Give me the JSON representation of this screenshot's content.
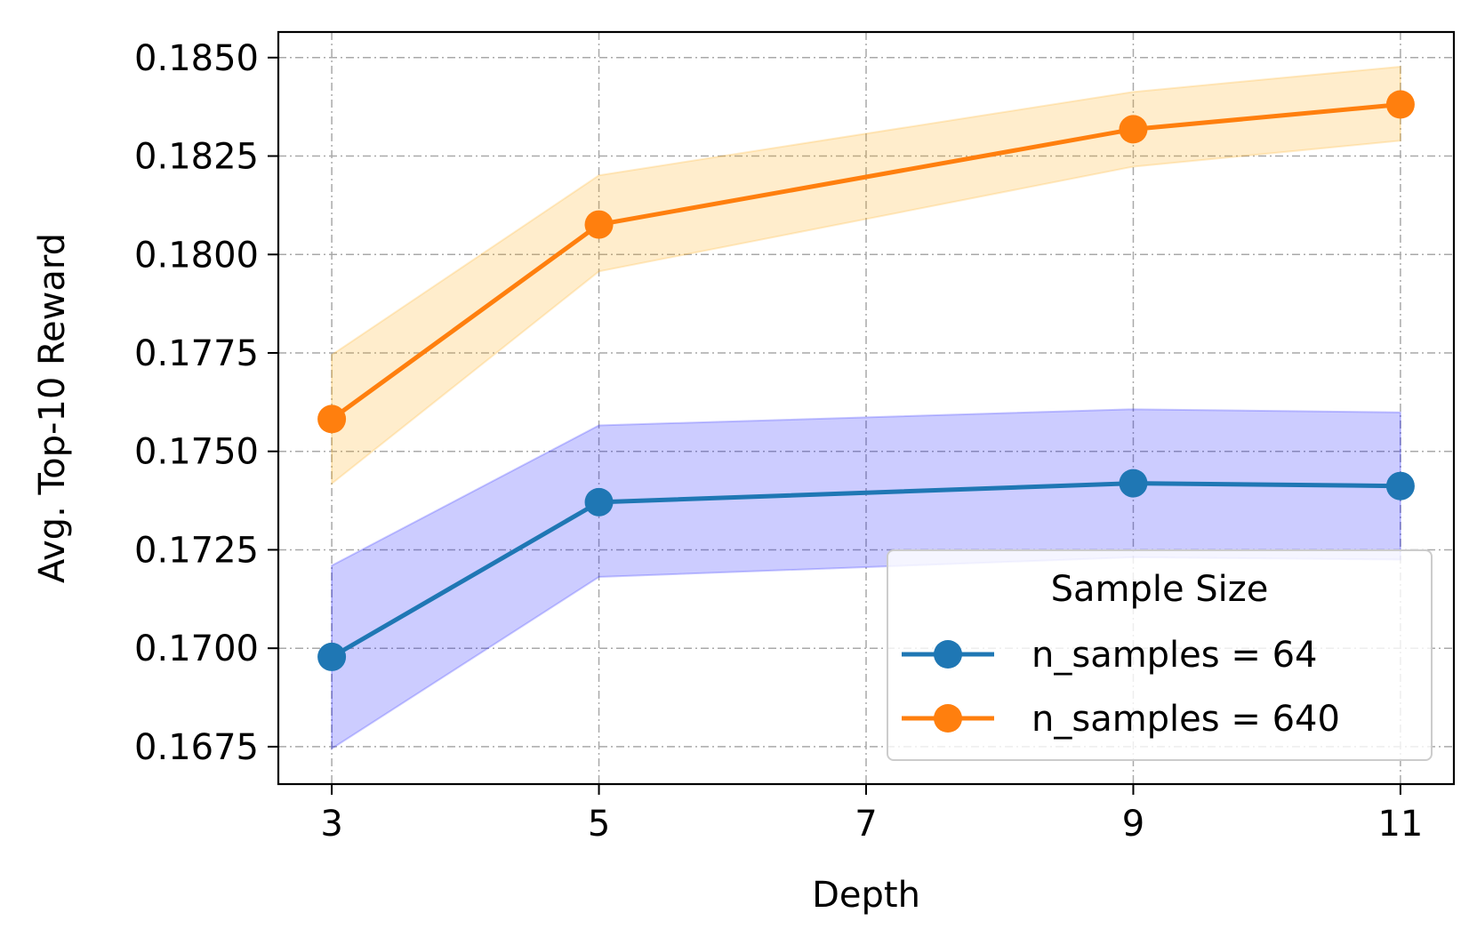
{
  "chart_data": {
    "type": "line",
    "title": "",
    "xlabel": "Depth",
    "ylabel": "Avg. Top-10 Reward",
    "x": [
      3,
      5,
      9,
      11
    ],
    "xticks": [
      "3",
      "5",
      "7",
      "9",
      "11"
    ],
    "xlim": [
      2.6,
      11.4
    ],
    "yticks": [
      "0.1675",
      "0.1700",
      "0.1725",
      "0.1750",
      "0.1775",
      "0.1800",
      "0.1825",
      "0.1850"
    ],
    "ylim": [
      0.16655,
      0.18565
    ],
    "grid": true,
    "legend": {
      "title": "Sample Size",
      "position": "lower-right"
    },
    "series": [
      {
        "name": "n_samples = 64",
        "color": "#1f77b4",
        "band_color": "#0000ff",
        "values": [
          0.16978,
          0.17371,
          0.17419,
          0.17412
        ],
        "lower": [
          0.16745,
          0.17181,
          0.17231,
          0.17225
        ],
        "upper": [
          0.1721,
          0.17566,
          0.17607,
          0.17599
        ]
      },
      {
        "name": "n_samples = 640",
        "color": "#ff7f0e",
        "band_color": "#ffa500",
        "values": [
          0.17582,
          0.18076,
          0.18318,
          0.18381
        ],
        "lower": [
          0.17418,
          0.17957,
          0.18223,
          0.18289
        ],
        "upper": [
          0.17745,
          0.18201,
          0.18413,
          0.18477
        ]
      }
    ]
  }
}
